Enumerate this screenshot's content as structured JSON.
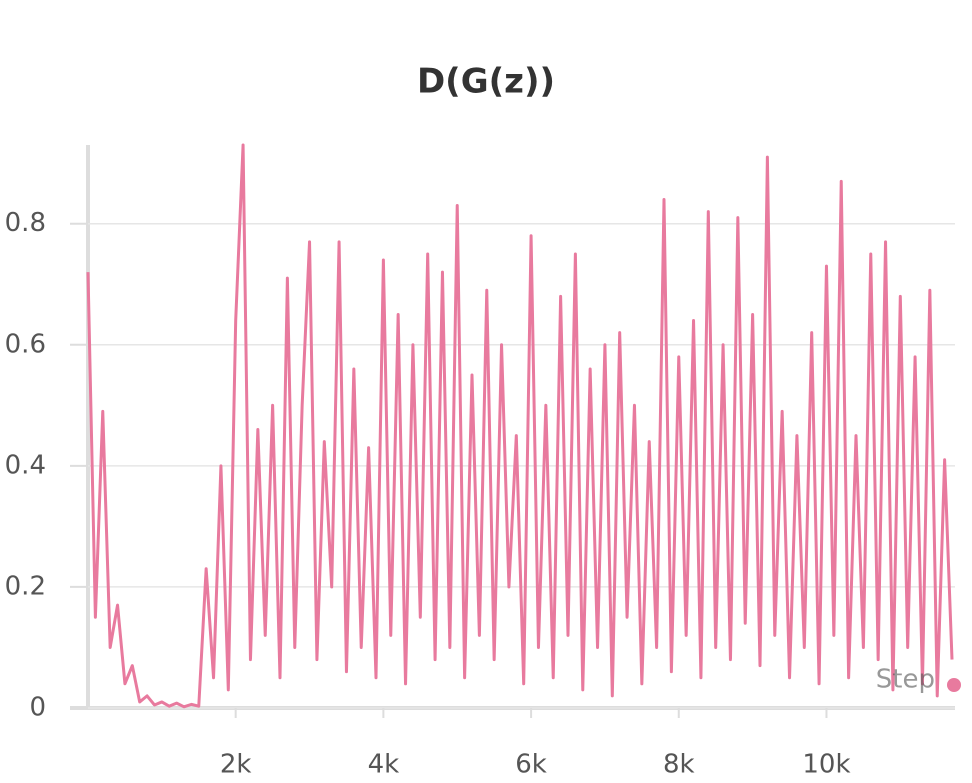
{
  "chart_data": {
    "type": "line",
    "title": "D(G(z))",
    "x_label": "Step",
    "x": [
      0,
      100,
      200,
      300,
      400,
      500,
      600,
      700,
      800,
      900,
      1000,
      1100,
      1200,
      1300,
      1400,
      1500,
      1600,
      1700,
      1800,
      1900,
      2000,
      2100,
      2200,
      2300,
      2400,
      2500,
      2600,
      2700,
      2800,
      2900,
      3000,
      3100,
      3200,
      3300,
      3400,
      3500,
      3600,
      3700,
      3800,
      3900,
      4000,
      4100,
      4200,
      4300,
      4400,
      4500,
      4600,
      4700,
      4800,
      4900,
      5000,
      5100,
      5200,
      5300,
      5400,
      5500,
      5600,
      5700,
      5800,
      5900,
      6000,
      6100,
      6200,
      6300,
      6400,
      6500,
      6600,
      6700,
      6800,
      6900,
      7000,
      7100,
      7200,
      7300,
      7400,
      7500,
      7600,
      7700,
      7800,
      7900,
      8000,
      8100,
      8200,
      8300,
      8400,
      8500,
      8600,
      8700,
      8800,
      8900,
      9000,
      9100,
      9200,
      9300,
      9400,
      9500,
      9600,
      9700,
      9800,
      9900,
      10000,
      10100,
      10200,
      10300,
      10400,
      10500,
      10600,
      10700,
      10800,
      10900,
      11000,
      11100,
      11200,
      11300,
      11400,
      11500,
      11600,
      11700
    ],
    "series": [
      {
        "color": "#e87a9e",
        "values": [
          0.72,
          0.15,
          0.49,
          0.1,
          0.17,
          0.04,
          0.07,
          0.01,
          0.02,
          0.005,
          0.01,
          0.003,
          0.008,
          0.002,
          0.006,
          0.003,
          0.23,
          0.05,
          0.4,
          0.03,
          0.64,
          0.93,
          0.08,
          0.46,
          0.12,
          0.5,
          0.05,
          0.71,
          0.1,
          0.5,
          0.77,
          0.08,
          0.44,
          0.2,
          0.77,
          0.06,
          0.56,
          0.1,
          0.43,
          0.05,
          0.74,
          0.12,
          0.65,
          0.04,
          0.6,
          0.15,
          0.75,
          0.08,
          0.72,
          0.1,
          0.83,
          0.05,
          0.55,
          0.12,
          0.69,
          0.08,
          0.6,
          0.2,
          0.45,
          0.04,
          0.78,
          0.1,
          0.5,
          0.05,
          0.68,
          0.12,
          0.75,
          0.03,
          0.56,
          0.1,
          0.6,
          0.02,
          0.62,
          0.15,
          0.5,
          0.04,
          0.44,
          0.1,
          0.84,
          0.06,
          0.58,
          0.12,
          0.64,
          0.05,
          0.82,
          0.1,
          0.6,
          0.08,
          0.81,
          0.14,
          0.65,
          0.07,
          0.91,
          0.12,
          0.49,
          0.05,
          0.45,
          0.1,
          0.62,
          0.04,
          0.73,
          0.12,
          0.87,
          0.05,
          0.45,
          0.1,
          0.75,
          0.08,
          0.77,
          0.03,
          0.68,
          0.1,
          0.58,
          0.04,
          0.69,
          0.02,
          0.41,
          0.08
        ]
      }
    ],
    "xlim": [
      0,
      11700
    ],
    "ylim": [
      0,
      0.93
    ],
    "xticks": [
      {
        "value": 2000,
        "label": "2k"
      },
      {
        "value": 4000,
        "label": "4k"
      },
      {
        "value": 6000,
        "label": "6k"
      },
      {
        "value": 8000,
        "label": "8k"
      },
      {
        "value": 10000,
        "label": "10k"
      }
    ],
    "yticks": [
      0,
      0.2,
      0.4,
      0.6,
      0.8
    ],
    "grid": true
  }
}
